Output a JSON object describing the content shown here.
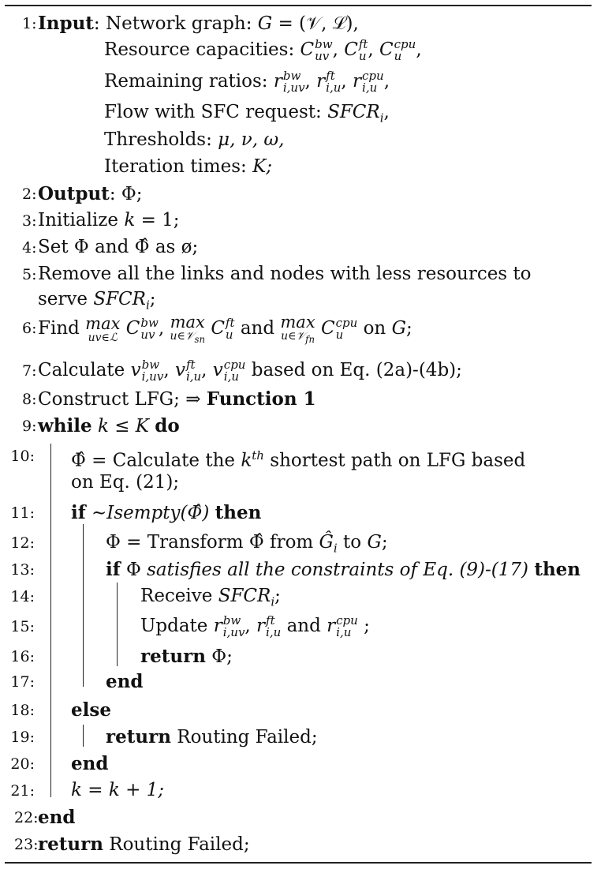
{
  "algorithm": {
    "lines": [
      {
        "n": "1:",
        "k": "Input",
        "t": ": Network graph: ",
        "m": "G = (𝒱, ℒ),"
      },
      {
        "n": "",
        "t": "Resource capacities: ",
        "m": "C_uv^bw, C_u^ft, C_u^cpu,"
      },
      {
        "n": "",
        "t": "Remaining ratios: ",
        "m": "r_i,uv^bw, r_i,u^ft, r_i,u^cpu,"
      },
      {
        "n": "",
        "t": "Flow with SFC request: ",
        "m": "SFCR_i,"
      },
      {
        "n": "",
        "t": "Thresholds: ",
        "m": "μ, ν, ω,"
      },
      {
        "n": "",
        "t": "Iteration times: ",
        "m": "K;"
      },
      {
        "n": "2:",
        "k": "Output",
        "t": ": Φ;"
      },
      {
        "n": "3:",
        "t": "Initialize ",
        "m": "k = 1;"
      },
      {
        "n": "4:",
        "t": "Set Φ and Φ̂ as ø;"
      },
      {
        "n": "5:",
        "t": "Remove all the links and nodes with less resources to"
      },
      {
        "n": "",
        "t": "serve ",
        "m": "SFCR_i;"
      },
      {
        "n": "6:",
        "t": "Find max C_uv^bw, max C_u^ft and max C_u^cpu on G;"
      },
      {
        "n": "7:",
        "t": "Calculate v_i,uv^bw, v_i,u^ft, v_i,u^cpu based on Eq. (2a)-(4b);"
      },
      {
        "n": "8:",
        "t": "Construct LFG; ⇒ ",
        "k2": "Function 1"
      },
      {
        "n": "9:",
        "k": "while",
        "m": " k ≤ K ",
        "k2": "do"
      },
      {
        "n": "10:",
        "t": "Φ̂ = Calculate the k^th shortest path on LFG based"
      },
      {
        "n": "",
        "t": "on Eq. (21);"
      },
      {
        "n": "11:",
        "k": "if",
        "t": " ∼Isempty(Φ̂) ",
        "k2": "then"
      },
      {
        "n": "12:",
        "t": "Φ = Transform Φ̂ from Ĝ_i to G;"
      },
      {
        "n": "13:",
        "k": "if",
        "t": "  Φ satisfies all the constraints of Eq. (9)-(17) ",
        "k2": "then"
      },
      {
        "n": "14:",
        "t": "Receive ",
        "m": "SFCR_i;"
      },
      {
        "n": "15:",
        "t": "Update r_i,uv^bw, r_i,u^ft and r_i,u^cpu ;"
      },
      {
        "n": "16:",
        "k": "return",
        "t": " Φ;"
      },
      {
        "n": "17:",
        "k": "end"
      },
      {
        "n": "18:",
        "k": "else"
      },
      {
        "n": "19:",
        "k": "return",
        "t": " Routing Failed;"
      },
      {
        "n": "20:",
        "k": "end"
      },
      {
        "n": "21:",
        "m": "k = k + 1;"
      },
      {
        "n": "22:",
        "k": "end"
      },
      {
        "n": "23:",
        "k": "return",
        "t": " Routing Failed;"
      }
    ]
  }
}
